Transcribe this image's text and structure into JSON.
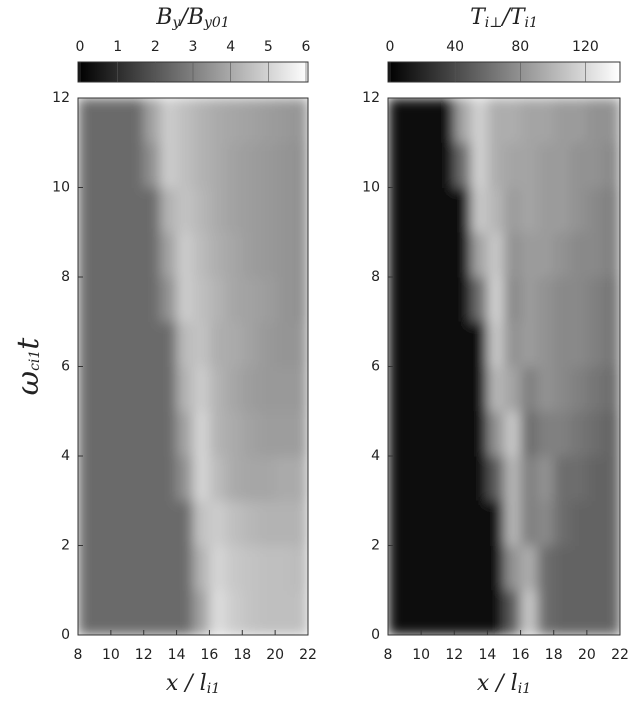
{
  "chart_data": [
    {
      "type": "heatmap",
      "colorbar_label": [
        "B",
        "y",
        "/B",
        "y01"
      ],
      "xlabel": [
        "x / l",
        "i1"
      ],
      "ylabel": [
        "ω",
        "ci1",
        "t"
      ],
      "zlim": [
        0,
        6
      ],
      "zticks": [
        0,
        1,
        2,
        3,
        4,
        5,
        6
      ],
      "xlim": [
        8,
        22
      ],
      "xticks": [
        8,
        10,
        12,
        14,
        16,
        18,
        20,
        22
      ],
      "ylim": [
        0,
        12
      ],
      "yticks": [
        0,
        2,
        4,
        6,
        8,
        10,
        12
      ],
      "x": [
        8.5,
        9.5,
        10.5,
        11.5,
        12.5,
        13.5,
        14.5,
        15.5,
        16.5,
        17.5,
        18.5,
        19.5,
        20.5,
        21.5
      ],
      "y": [
        0.5,
        1.5,
        2.5,
        3.5,
        4.5,
        5.5,
        6.5,
        7.5,
        8.5,
        9.5,
        10.5,
        11.5
      ],
      "values": [
        [
          2.5,
          2.5,
          2.5,
          2.5,
          2.5,
          2.5,
          2.5,
          3.8,
          5.2,
          4.8,
          4.6,
          4.5,
          4.5,
          4.5
        ],
        [
          2.5,
          2.5,
          2.5,
          2.5,
          2.5,
          2.5,
          2.5,
          4.2,
          5.0,
          4.7,
          4.6,
          4.5,
          4.5,
          4.4
        ],
        [
          2.5,
          2.5,
          2.5,
          2.5,
          2.5,
          2.5,
          2.5,
          4.6,
          4.8,
          4.5,
          4.3,
          4.2,
          4.2,
          4.2
        ],
        [
          2.5,
          2.5,
          2.5,
          2.5,
          2.5,
          2.5,
          3.4,
          5.0,
          4.4,
          4.0,
          3.9,
          3.9,
          4.0,
          4.0
        ],
        [
          2.5,
          2.5,
          2.5,
          2.5,
          2.5,
          2.5,
          3.8,
          5.0,
          4.2,
          4.0,
          3.8,
          3.7,
          3.7,
          3.7
        ],
        [
          2.5,
          2.5,
          2.5,
          2.5,
          2.5,
          2.5,
          4.2,
          4.8,
          4.2,
          3.9,
          3.7,
          3.6,
          3.6,
          3.6
        ],
        [
          2.5,
          2.5,
          2.5,
          2.5,
          2.5,
          2.5,
          4.4,
          4.6,
          4.1,
          4.0,
          3.8,
          3.6,
          3.5,
          3.5
        ],
        [
          2.5,
          2.5,
          2.5,
          2.5,
          2.5,
          3.4,
          4.8,
          4.5,
          4.2,
          3.9,
          3.8,
          3.7,
          3.5,
          3.4
        ],
        [
          2.5,
          2.5,
          2.5,
          2.5,
          2.5,
          3.8,
          4.8,
          4.4,
          4.1,
          3.9,
          3.7,
          3.6,
          3.5,
          3.4
        ],
        [
          2.5,
          2.5,
          2.5,
          2.5,
          2.5,
          4.2,
          4.6,
          4.3,
          4.0,
          3.8,
          3.7,
          3.6,
          3.5,
          3.4
        ],
        [
          2.5,
          2.5,
          2.5,
          2.5,
          3.4,
          4.8,
          4.5,
          4.2,
          4.0,
          3.8,
          3.7,
          3.6,
          3.5,
          3.4
        ],
        [
          2.5,
          2.5,
          2.5,
          2.5,
          3.8,
          4.8,
          4.5,
          4.2,
          4.0,
          3.9,
          3.8,
          3.7,
          3.6,
          3.5
        ]
      ]
    },
    {
      "type": "heatmap",
      "colorbar_label": [
        "T",
        "i⊥",
        "/T",
        "i1"
      ],
      "xlabel": [
        "x / l",
        "i1"
      ],
      "zlim": [
        0,
        140
      ],
      "zticks": [
        0,
        40,
        80,
        120
      ],
      "xlim": [
        8,
        22
      ],
      "xticks": [
        8,
        10,
        12,
        14,
        16,
        18,
        20,
        22
      ],
      "ylim": [
        0,
        12
      ],
      "yticks": [
        0,
        2,
        4,
        6,
        8,
        10,
        12
      ],
      "x": [
        8.5,
        9.5,
        10.5,
        11.5,
        12.5,
        13.5,
        14.5,
        15.5,
        16.5,
        17.5,
        18.5,
        19.5,
        20.5,
        21.5
      ],
      "y": [
        0.5,
        1.5,
        2.5,
        3.5,
        4.5,
        5.5,
        6.5,
        7.5,
        8.5,
        9.5,
        10.5,
        11.5
      ],
      "values": [
        [
          4,
          4,
          4,
          4,
          4,
          4,
          4,
          50,
          110,
          60,
          55,
          55,
          55,
          55
        ],
        [
          4,
          4,
          4,
          4,
          4,
          4,
          4,
          80,
          95,
          60,
          55,
          55,
          55,
          55
        ],
        [
          4,
          4,
          4,
          4,
          4,
          4,
          4,
          100,
          70,
          75,
          60,
          55,
          55,
          55
        ],
        [
          4,
          4,
          4,
          4,
          4,
          4,
          50,
          100,
          70,
          80,
          60,
          60,
          55,
          55
        ],
        [
          4,
          4,
          4,
          4,
          4,
          4,
          80,
          110,
          60,
          70,
          70,
          65,
          60,
          55
        ],
        [
          4,
          4,
          4,
          4,
          4,
          4,
          100,
          90,
          70,
          80,
          75,
          70,
          65,
          60
        ],
        [
          4,
          4,
          4,
          4,
          4,
          4,
          110,
          80,
          85,
          80,
          75,
          75,
          70,
          65
        ],
        [
          4,
          4,
          4,
          4,
          4,
          60,
          115,
          75,
          85,
          80,
          75,
          75,
          70,
          65
        ],
        [
          4,
          4,
          4,
          4,
          4,
          90,
          110,
          80,
          85,
          85,
          80,
          75,
          75,
          70
        ],
        [
          4,
          4,
          4,
          4,
          4,
          110,
          100,
          85,
          90,
          85,
          85,
          80,
          75,
          70
        ],
        [
          4,
          4,
          4,
          4,
          60,
          115,
          95,
          90,
          90,
          85,
          85,
          80,
          80,
          75
        ],
        [
          4,
          4,
          4,
          4,
          90,
          115,
          95,
          95,
          90,
          90,
          85,
          85,
          80,
          80
        ]
      ]
    }
  ]
}
